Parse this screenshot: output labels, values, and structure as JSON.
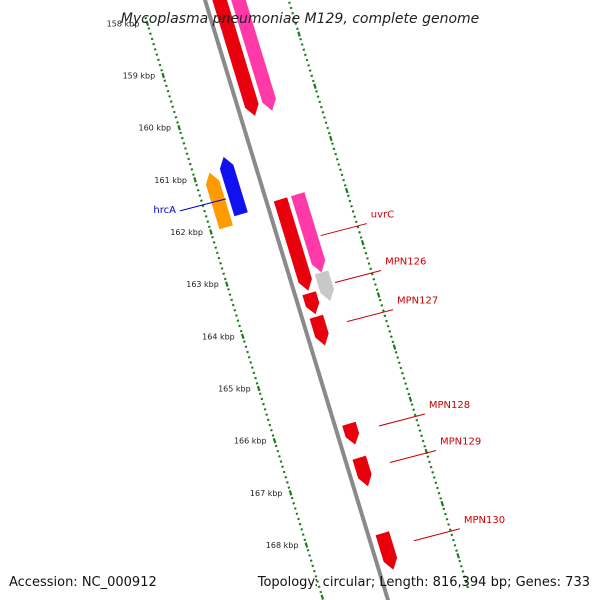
{
  "title": "Mycoplasma pneumoniae M129, complete genome",
  "footer": {
    "accession": "Accession: NC_000912",
    "summary": "Topology: circular; Length: 816,394 bp; Genes: 733"
  },
  "colors": {
    "backbone": "#8a8a8a",
    "tick": "#1a7a1a",
    "label_red": "#cc0000",
    "label_blue": "#0000cc",
    "gene_red": "#e8000c",
    "gene_pink": "#ff3aa8",
    "gene_orange": "#ff9a00",
    "gene_blue": "#1010f0",
    "gene_gray": "#c8c8c8"
  },
  "scale_labels": [
    "158 kbp",
    "159 kbp",
    "160 kbp",
    "161 kbp",
    "162 kbp",
    "163 kbp",
    "164 kbp",
    "165 kbp",
    "166 kbp",
    "167 kbp",
    "168 kbp"
  ],
  "scale_kbp": [
    158,
    159,
    160,
    161,
    162,
    163,
    164,
    165,
    166,
    167,
    168
  ],
  "view_kbp": [
    157.9,
    169.4
  ],
  "features": [
    {
      "ring": 1,
      "start_kbp": 157.9,
      "end_kbp": 160.2,
      "strand": 1,
      "color": "gene_red"
    },
    {
      "ring": 2,
      "start_kbp": 157.9,
      "end_kbp": 160.2,
      "strand": 1,
      "color": "gene_pink"
    },
    {
      "ring": -2,
      "start_kbp": 160.95,
      "end_kbp": 162.0,
      "strand": -1,
      "color": "gene_orange"
    },
    {
      "ring": -1,
      "start_kbp": 160.75,
      "end_kbp": 161.85,
      "strand": -1,
      "color": "gene_blue"
    },
    {
      "ring": 1,
      "start_kbp": 161.8,
      "end_kbp": 163.55,
      "strand": 1,
      "color": "gene_red"
    },
    {
      "ring": 2,
      "start_kbp": 161.8,
      "end_kbp": 163.3,
      "strand": 1,
      "color": "gene_pink"
    },
    {
      "ring": 2,
      "start_kbp": 163.3,
      "end_kbp": 163.85,
      "strand": 1,
      "color": "gene_gray"
    },
    {
      "ring": 1,
      "start_kbp": 163.6,
      "end_kbp": 164.0,
      "strand": 1,
      "color": "gene_red"
    },
    {
      "ring": 1,
      "start_kbp": 164.05,
      "end_kbp": 164.6,
      "strand": 1,
      "color": "gene_red"
    },
    {
      "ring": 1,
      "start_kbp": 166.1,
      "end_kbp": 166.5,
      "strand": 1,
      "color": "gene_red"
    },
    {
      "ring": 1,
      "start_kbp": 166.75,
      "end_kbp": 167.3,
      "strand": 1,
      "color": "gene_red"
    },
    {
      "ring": 1,
      "start_kbp": 168.2,
      "end_kbp": 168.9,
      "strand": 1,
      "color": "gene_red"
    }
  ],
  "labels": [
    {
      "text": "hrcA",
      "anchor_kbp": 161.5,
      "ring": -1,
      "side": "left",
      "color": "label_blue"
    },
    {
      "text": "uvrC",
      "anchor_kbp": 162.65,
      "ring": 2,
      "side": "right",
      "color": "label_red"
    },
    {
      "text": "MPN126",
      "anchor_kbp": 163.55,
      "ring": 2,
      "side": "right",
      "color": "label_red"
    },
    {
      "text": "MPN127",
      "anchor_kbp": 164.3,
      "ring": 2,
      "side": "right",
      "color": "label_red"
    },
    {
      "text": "MPN128",
      "anchor_kbp": 166.3,
      "ring": 2,
      "side": "right",
      "color": "label_red"
    },
    {
      "text": "MPN129",
      "anchor_kbp": 167.0,
      "ring": 2,
      "side": "right",
      "color": "label_red"
    },
    {
      "text": "MPN130",
      "anchor_kbp": 168.5,
      "ring": 2,
      "side": "right",
      "color": "label_red"
    }
  ]
}
